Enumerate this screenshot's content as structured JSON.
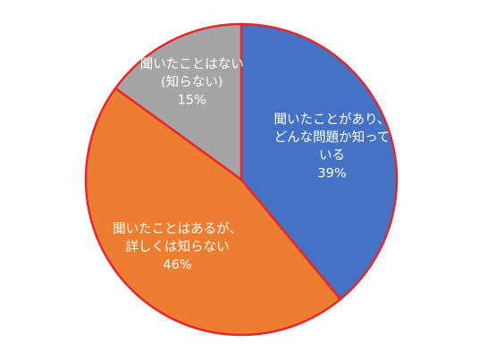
{
  "chart_data": {
    "type": "pie",
    "title": "",
    "start_angle_deg": -90,
    "direction": "clockwise",
    "slices": [
      {
        "lines": [
          "聞いたことがあり、",
          "どんな問題か知って",
          "いる"
        ],
        "value": 39,
        "value_label": "39%",
        "color": "#4472c4",
        "text_color": "#ffffff"
      },
      {
        "lines": [
          "聞いたことはあるが、",
          "詳しくは知らない"
        ],
        "value": 46,
        "value_label": "46%",
        "color": "#ed7d31",
        "text_color": "#ffffff"
      },
      {
        "lines": [
          "聞いたことはない",
          "(知らない)"
        ],
        "value": 15,
        "value_label": "15%",
        "color": "#a5a5a5",
        "text_color": "#ffffff"
      }
    ],
    "border_color": "#e8262b"
  }
}
